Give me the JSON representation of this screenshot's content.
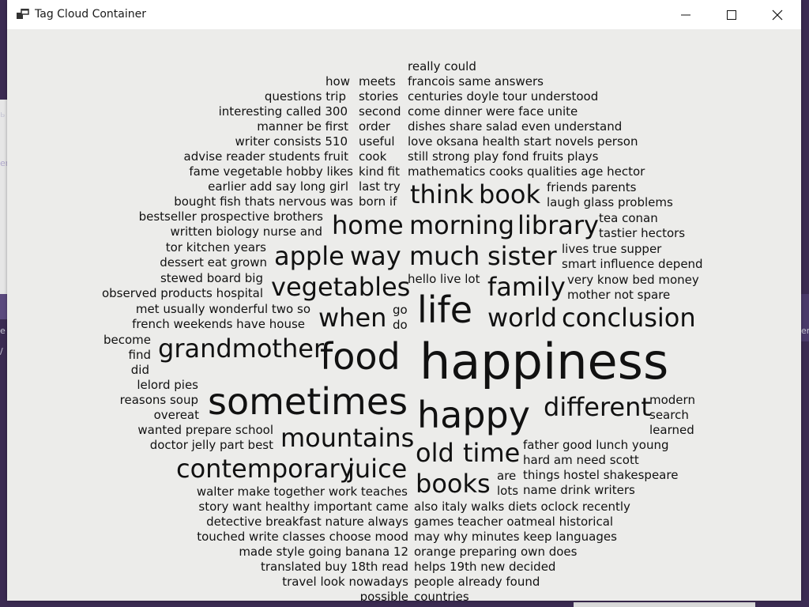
{
  "window": {
    "title": "Tag Cloud Container",
    "app_icon": "app-window-icon",
    "controls": {
      "minimize": "minimize-icon",
      "maximize": "maximize-icon",
      "close": "close-icon"
    },
    "background_color": "#ececea",
    "titlebar_color": "#ffffff"
  },
  "background": {
    "left_edge_texts": [
      "ь",
      "er",
      "e",
      "/"
    ],
    "right_edge_texts": [
      "er"
    ]
  },
  "tag_cloud": {
    "columns": [
      {
        "id": "c1",
        "lines": [
          {
            "text": "how",
            "size": 15
          },
          {
            "text": "questions trip",
            "size": 15
          },
          {
            "text": "interesting called 300",
            "size": 15
          },
          {
            "text": "manner be  first",
            "size": 15
          },
          {
            "text": "writer consists 510",
            "size": 15
          },
          {
            "text": "advise reader students fruit",
            "size": 15
          },
          {
            "text": "fame vegetable hobby  likes",
            "size": 15
          },
          {
            "text": "earlier add  say long  girl",
            "size": 15
          },
          {
            "text": "bought fish  thats nervous was",
            "size": 15
          },
          {
            "text": "bestseller prospective brothers",
            "size": 15
          },
          {
            "text": "written biology nurse and",
            "size": 15
          },
          {
            "text": "tor kitchen years",
            "size": 15
          },
          {
            "text": "dessert eat grown",
            "size": 15
          },
          {
            "text": "stewed board  big",
            "size": 15
          },
          {
            "text": "observed products hospital",
            "size": 15
          },
          {
            "text": "met usually wonderful two so",
            "size": 15
          },
          {
            "text": "french weekends have house",
            "size": 15
          },
          {
            "text": "become",
            "size": 15
          },
          {
            "text": "find",
            "size": 15
          },
          {
            "text": "did",
            "size": 15
          },
          {
            "text": "lelord pies",
            "size": 15
          },
          {
            "text": "reasons soup",
            "size": 15
          },
          {
            "text": "overeat",
            "size": 15
          },
          {
            "text": "wanted prepare school",
            "size": 15
          },
          {
            "text": "doctor jelly part best",
            "size": 15
          },
          {
            "text": "walter make together work teaches",
            "size": 15
          },
          {
            "text": "story want healthy important came",
            "size": 15
          },
          {
            "text": "detective breakfast nature always",
            "size": 15
          },
          {
            "text": "touched write classes choose mood",
            "size": 15
          },
          {
            "text": "made style going banana 12",
            "size": 15
          },
          {
            "text": "translated buy  18th  read",
            "size": 15
          },
          {
            "text": "travel look nowadays",
            "size": 15
          },
          {
            "text": "possible",
            "size": 15
          }
        ]
      },
      {
        "id": "c2",
        "lines": [
          {
            "text": "meets",
            "size": 15
          },
          {
            "text": "stories",
            "size": 15
          },
          {
            "text": "second",
            "size": 15
          },
          {
            "text": "order",
            "size": 15
          },
          {
            "text": "useful",
            "size": 15
          },
          {
            "text": "cook",
            "size": 15
          },
          {
            "text": "kind fit",
            "size": 15
          },
          {
            "text": "last try",
            "size": 15
          },
          {
            "text": "born if",
            "size": 15
          },
          {
            "text": "go",
            "size": 15
          },
          {
            "text": "do",
            "size": 15
          }
        ]
      },
      {
        "id": "c3",
        "lines": [
          {
            "text": "really could",
            "size": 15
          },
          {
            "text": "francois same answers",
            "size": 15
          },
          {
            "text": "centuries doyle tour understood",
            "size": 15
          },
          {
            "text": "come dinner were face  unite",
            "size": 15
          },
          {
            "text": "dishes share salad even understand",
            "size": 15
          },
          {
            "text": "love oksana health start novels person",
            "size": 15
          },
          {
            "text": "still strong play fond fruits plays",
            "size": 15
          },
          {
            "text": "mathematics cooks qualities age hector",
            "size": 15
          },
          {
            "text": "hello live lot",
            "size": 15
          },
          {
            "text": "also italy walks diets oclock recently",
            "size": 15
          },
          {
            "text": "games teacher oatmeal historical",
            "size": 15
          },
          {
            "text": "may why minutes keep languages",
            "size": 15
          },
          {
            "text": "orange preparing own does",
            "size": 15
          },
          {
            "text": "helps 19th new decided",
            "size": 15
          },
          {
            "text": "people already found",
            "size": 15
          },
          {
            "text": "countries",
            "size": 15
          }
        ]
      },
      {
        "id": "c4",
        "lines": [
          {
            "text": "friends parents",
            "size": 15
          },
          {
            "text": "laugh glass problems",
            "size": 15
          },
          {
            "text": "tea conan",
            "size": 15
          },
          {
            "text": "tastier hectors",
            "size": 15
          },
          {
            "text": "lives true supper",
            "size": 15
          },
          {
            "text": "smart influence depend",
            "size": 15
          },
          {
            "text": "very know bed money",
            "size": 15
          },
          {
            "text": "mother not spare",
            "size": 15
          },
          {
            "text": "modern",
            "size": 15
          },
          {
            "text": "search",
            "size": 15
          },
          {
            "text": "learned",
            "size": 15
          },
          {
            "text": "father good lunch young",
            "size": 15
          },
          {
            "text": "hard am need scott",
            "size": 15
          },
          {
            "text": "are",
            "size": 15
          },
          {
            "text": "things hostel shakespeare",
            "size": 15
          },
          {
            "text": "lots",
            "size": 15
          },
          {
            "text": "name drink writers",
            "size": 15
          }
        ]
      },
      {
        "id": "big",
        "lines": [
          {
            "text": "think",
            "size": 32
          },
          {
            "text": "book",
            "size": 32
          },
          {
            "text": "home",
            "size": 32
          },
          {
            "text": "morning",
            "size": 32
          },
          {
            "text": "library",
            "size": 32
          },
          {
            "text": "apple",
            "size": 32
          },
          {
            "text": "way",
            "size": 32
          },
          {
            "text": "much",
            "size": 32
          },
          {
            "text": "sister",
            "size": 32
          },
          {
            "text": "vegetables",
            "size": 32
          },
          {
            "text": "family",
            "size": 32
          },
          {
            "text": "life",
            "size": 46
          },
          {
            "text": "when",
            "size": 32
          },
          {
            "text": "world",
            "size": 32
          },
          {
            "text": "conclusion",
            "size": 32
          },
          {
            "text": "grandmother",
            "size": 32
          },
          {
            "text": "food",
            "size": 46
          },
          {
            "text": "happiness",
            "size": 62
          },
          {
            "text": "sometimes",
            "size": 46
          },
          {
            "text": "happy",
            "size": 46
          },
          {
            "text": "different",
            "size": 32
          },
          {
            "text": "mountains",
            "size": 32
          },
          {
            "text": "old",
            "size": 32
          },
          {
            "text": "time",
            "size": 32
          },
          {
            "text": "contemporary",
            "size": 32
          },
          {
            "text": "juice",
            "size": 32
          },
          {
            "text": "books",
            "size": 32
          }
        ]
      }
    ]
  }
}
